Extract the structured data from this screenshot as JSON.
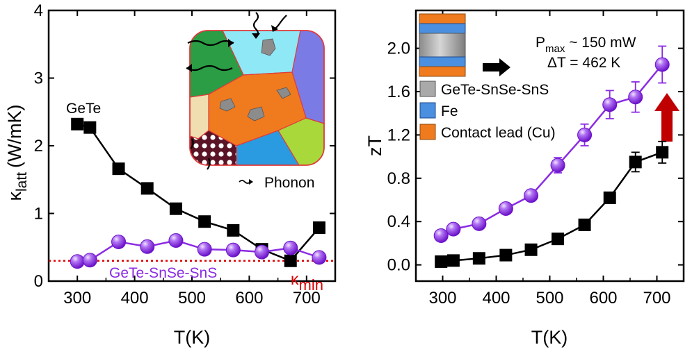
{
  "colors": {
    "black": "#000000",
    "purple": "#8b2be2",
    "purple_light": "#c99cf5",
    "red": "#e00000",
    "arrow_red": "#c00000"
  },
  "chart_data": [
    {
      "type": "line",
      "title": "",
      "xlabel": "T(K)",
      "ylabel_main": "κ",
      "ylabel_sub": "latt",
      "ylabel_unit": "(W/mK)",
      "xlim": [
        250,
        750
      ],
      "ylim": [
        0,
        4
      ],
      "xticks": [
        "300",
        "400",
        "500",
        "600",
        "700"
      ],
      "yticks": [
        "0",
        "1",
        "2",
        "3",
        "4"
      ],
      "series": [
        {
          "name": "GeTe",
          "marker": "square",
          "x": [
            300,
            322,
            372,
            422,
            472,
            522,
            572,
            622,
            672,
            722
          ],
          "y": [
            2.32,
            2.27,
            1.66,
            1.37,
            1.07,
            0.88,
            0.75,
            0.47,
            0.3,
            0.79
          ]
        },
        {
          "name": "GeTe-SnSe-SnS",
          "marker": "sphere",
          "x": [
            300,
            322,
            372,
            422,
            472,
            522,
            572,
            622,
            672,
            722
          ],
          "y": [
            0.29,
            0.31,
            0.58,
            0.51,
            0.6,
            0.47,
            0.46,
            0.43,
            0.49,
            0.35
          ]
        }
      ],
      "reference_line": {
        "label_main": "κ",
        "label_sub": "min",
        "y": 0.3
      },
      "annotations": {
        "gete": "GeTe",
        "composite": "GeTe-SnSe-SnS",
        "phonon": "Phonon"
      }
    },
    {
      "type": "line",
      "title": "",
      "xlabel": "T(K)",
      "ylabel": "zT",
      "xlim": [
        250,
        750
      ],
      "ylim": [
        -0.15,
        2.35
      ],
      "xticks": [
        "300",
        "400",
        "500",
        "600",
        "700"
      ],
      "yticks": [
        "0.0",
        "0.4",
        "0.8",
        "1.2",
        "1.6",
        "2.0"
      ],
      "series": [
        {
          "name": "GeTe-SnSe-SnS",
          "marker": "sphere",
          "x": [
            297,
            320,
            368,
            418,
            465,
            515,
            565,
            612,
            660,
            710
          ],
          "y": [
            0.27,
            0.33,
            0.38,
            0.52,
            0.64,
            0.92,
            1.2,
            1.48,
            1.55,
            1.85
          ],
          "err": [
            0.03,
            0.03,
            0.03,
            0.04,
            0.05,
            0.07,
            0.1,
            0.13,
            0.14,
            0.17
          ]
        },
        {
          "name": "GeTe",
          "marker": "square",
          "x": [
            297,
            320,
            368,
            418,
            465,
            515,
            565,
            612,
            660,
            710
          ],
          "y": [
            0.03,
            0.04,
            0.06,
            0.09,
            0.14,
            0.24,
            0.37,
            0.62,
            0.95,
            1.04
          ],
          "err": [
            0,
            0,
            0,
            0,
            0,
            0,
            0,
            0,
            0.09,
            0.1
          ]
        }
      ],
      "legend": [
        {
          "label": "GeTe-SnSe-SnS",
          "color": "#a9a9a9"
        },
        {
          "label": "Fe",
          "color": "#4a8fe0"
        },
        {
          "label": "Contact lead (Cu)",
          "color": "#f07a1e"
        }
      ],
      "annotations": {
        "pmax_main": "P",
        "pmax_sub": "max",
        "pmax_value": " ~ 150 mW",
        "delta_t": "ΔT = 462 K"
      }
    }
  ]
}
